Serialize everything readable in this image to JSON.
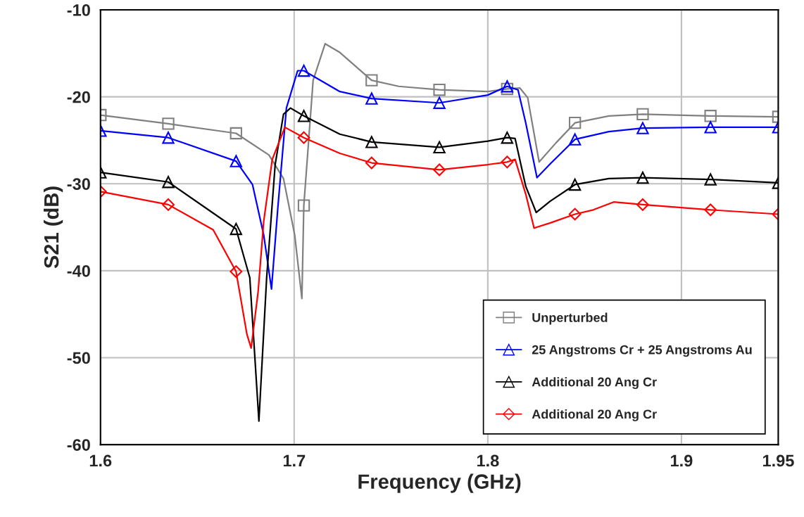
{
  "chart_data": {
    "type": "line",
    "xlabel": "Frequency (GHz)",
    "ylabel": "S21 (dB)",
    "xlim": [
      1.6,
      1.95
    ],
    "xticks": [
      1.6,
      1.7,
      1.8,
      1.9,
      1.95
    ],
    "ylim": [
      -60,
      -10
    ],
    "yticks": [
      -60,
      -50,
      -40,
      -30,
      -20,
      -10
    ],
    "grid": true,
    "legend": "bottom right",
    "line_style": "solid",
    "series": [
      {
        "color": "#808080",
        "x": [
          1.6,
          1.635,
          1.67,
          1.687,
          1.6945,
          1.7003,
          1.704,
          1.705,
          1.7098,
          1.716,
          1.7236,
          1.74,
          1.754,
          1.775,
          1.8,
          1.81,
          1.8166,
          1.8206,
          1.8265,
          1.8352,
          1.845,
          1.8625,
          1.88,
          1.915,
          1.95
        ],
        "values": [
          -22.1,
          -23.1,
          -24.2,
          -26.7,
          -29.4,
          -35.9,
          -43.2,
          -32.5,
          -18.1,
          -13.9,
          -14.9,
          -18.1,
          -18.8,
          -19.2,
          -19.4,
          -19.1,
          -19.0,
          -20.1,
          -27.5,
          -25.3,
          -23.0,
          -22.2,
          -22.0,
          -22.2,
          -22.3
        ]
      },
      {
        "type": "scatter",
        "name": "Unperturbed",
        "color": "#808080",
        "marker": "square",
        "x": [
          1.6,
          1.635,
          1.67,
          1.705,
          1.74,
          1.775,
          1.81,
          1.845,
          1.88,
          1.915,
          1.95
        ],
        "values": [
          -22.1,
          -23.1,
          -24.2,
          -32.5,
          -18.1,
          -19.2,
          -19.1,
          -23.0,
          -22.0,
          -22.2,
          -22.3
        ]
      },
      {
        "color": "#0000ff",
        "x": [
          1.6,
          1.635,
          1.67,
          1.6785,
          1.6843,
          1.6883,
          1.6916,
          1.696,
          1.7018,
          1.705,
          1.7236,
          1.74,
          1.775,
          1.8,
          1.81,
          1.8156,
          1.8196,
          1.8254,
          1.8323,
          1.845,
          1.8625,
          1.88,
          1.915,
          1.95
        ],
        "values": [
          -23.9,
          -24.7,
          -27.4,
          -30.1,
          -35.9,
          -42.1,
          -32.7,
          -21.3,
          -17.0,
          -17.0,
          -19.4,
          -20.2,
          -20.7,
          -19.8,
          -18.8,
          -19.2,
          -23.0,
          -29.3,
          -27.7,
          -24.9,
          -24.0,
          -23.6,
          -23.5,
          -23.5
        ]
      },
      {
        "type": "scatter",
        "name": "25 Angstroms Cr + 25 Angstroms Au",
        "color": "#0000ff",
        "marker": "triangle",
        "x": [
          1.6,
          1.635,
          1.67,
          1.705,
          1.74,
          1.775,
          1.81,
          1.845,
          1.88,
          1.915,
          1.95
        ],
        "values": [
          -23.9,
          -24.7,
          -27.4,
          -17.0,
          -20.2,
          -20.7,
          -18.8,
          -24.9,
          -23.6,
          -23.5,
          -23.5
        ]
      },
      {
        "color": "#000000",
        "x": [
          1.6,
          1.635,
          1.67,
          1.6771,
          1.6818,
          1.6858,
          1.6902,
          1.6945,
          1.6981,
          1.705,
          1.7236,
          1.74,
          1.775,
          1.8,
          1.81,
          1.8141,
          1.8196,
          1.825,
          1.8323,
          1.845,
          1.8625,
          1.88,
          1.915,
          1.95
        ],
        "values": [
          -28.7,
          -29.8,
          -35.2,
          -40.8,
          -57.3,
          -40.8,
          -27.8,
          -22.0,
          -21.3,
          -22.2,
          -24.3,
          -25.2,
          -25.8,
          -25.1,
          -24.7,
          -24.8,
          -30.3,
          -33.3,
          -32.0,
          -30.1,
          -29.4,
          -29.3,
          -29.5,
          -29.9
        ]
      },
      {
        "type": "scatter",
        "name": "Additional 20 Ang Cr",
        "color": "#000000",
        "marker": "triangle",
        "x": [
          1.6,
          1.635,
          1.67,
          1.705,
          1.74,
          1.775,
          1.81,
          1.845,
          1.88,
          1.915,
          1.95
        ],
        "values": [
          -28.7,
          -29.8,
          -35.2,
          -22.2,
          -25.2,
          -25.8,
          -24.7,
          -30.1,
          -29.3,
          -29.5,
          -29.9
        ]
      },
      {
        "color": "#ff0000",
        "x": [
          1.6,
          1.635,
          1.6582,
          1.67,
          1.6756,
          1.6778,
          1.6814,
          1.6843,
          1.6887,
          1.6952,
          1.705,
          1.7236,
          1.74,
          1.775,
          1.8,
          1.81,
          1.8141,
          1.8196,
          1.8239,
          1.8323,
          1.845,
          1.8545,
          1.865,
          1.88,
          1.915,
          1.95
        ],
        "values": [
          -30.9,
          -32.4,
          -35.3,
          -40.1,
          -47.3,
          -48.9,
          -42.4,
          -34.3,
          -27.2,
          -23.5,
          -24.7,
          -26.5,
          -27.6,
          -28.4,
          -27.8,
          -27.5,
          -27.2,
          -31.2,
          -35.1,
          -34.5,
          -33.5,
          -33.0,
          -32.1,
          -32.4,
          -33.0,
          -33.5
        ]
      },
      {
        "type": "scatter",
        "name": "Additional 20 Ang Cr",
        "color": "#ff0000",
        "marker": "diamond",
        "x": [
          1.6,
          1.635,
          1.67,
          1.705,
          1.74,
          1.775,
          1.81,
          1.845,
          1.88,
          1.915,
          1.95
        ],
        "values": [
          -30.9,
          -32.4,
          -40.1,
          -24.7,
          -27.6,
          -28.4,
          -27.5,
          -33.5,
          -32.4,
          -33.0,
          -33.5
        ]
      }
    ]
  }
}
